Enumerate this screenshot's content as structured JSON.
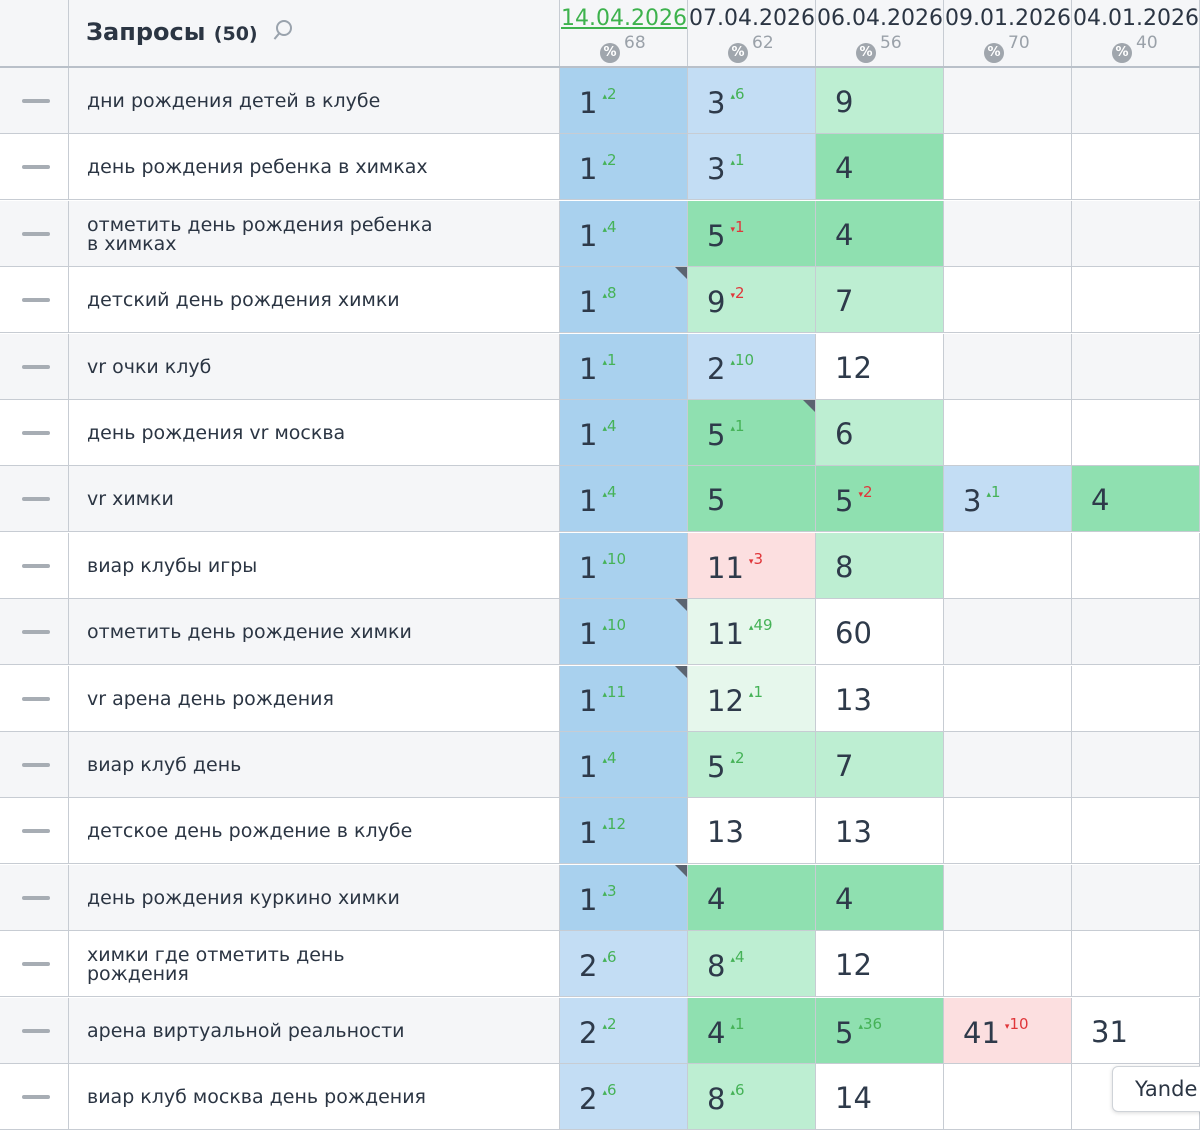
{
  "header": {
    "title": "Запросы",
    "count": "(50)",
    "search_icon": "search-icon",
    "dates": [
      {
        "date": "14.04.2026",
        "pct": "68",
        "active": true
      },
      {
        "date": "07.04.2026",
        "pct": "62",
        "active": false
      },
      {
        "date": "06.04.2026",
        "pct": "56",
        "active": false
      },
      {
        "date": "09.01.2026",
        "pct": "70",
        "active": false
      },
      {
        "date": "04.01.2026",
        "pct": "40",
        "active": false
      }
    ]
  },
  "colors": {
    "blue_dark": "#a9d1ee",
    "blue_light": "#c3ddf4",
    "green_dark": "#8fe0b0",
    "green_light": "#bdeed2",
    "green_pale": "#e6f7ec",
    "pink": "#fcdfe0",
    "white": "#ffffff",
    "grey_row": "#f5f6f8",
    "up": "#45b257",
    "down": "#e0363a"
  },
  "rows": [
    {
      "query": [
        "дни рождения детей в клубе"
      ],
      "cells": [
        {
          "pos": "1",
          "delta": "2",
          "dir": "up",
          "color": "blue_dark"
        },
        {
          "pos": "3",
          "delta": "6",
          "dir": "up",
          "color": "blue_light"
        },
        {
          "pos": "9",
          "color": "green_light"
        },
        {},
        {}
      ]
    },
    {
      "query": [
        "день рождения ребенка в химках"
      ],
      "cells": [
        {
          "pos": "1",
          "delta": "2",
          "dir": "up",
          "color": "blue_dark"
        },
        {
          "pos": "3",
          "delta": "1",
          "dir": "up",
          "color": "blue_light"
        },
        {
          "pos": "4",
          "color": "green_dark"
        },
        {},
        {}
      ]
    },
    {
      "query": [
        "отметить день рождения ребенка",
        "в химках"
      ],
      "cells": [
        {
          "pos": "1",
          "delta": "4",
          "dir": "up",
          "color": "blue_dark"
        },
        {
          "pos": "5",
          "delta": "1",
          "dir": "down",
          "color": "green_dark"
        },
        {
          "pos": "4",
          "color": "green_dark"
        },
        {},
        {}
      ]
    },
    {
      "query": [
        "детский день рождения химки"
      ],
      "cells": [
        {
          "pos": "1",
          "delta": "8",
          "dir": "up",
          "color": "blue_dark",
          "corner": true
        },
        {
          "pos": "9",
          "delta": "2",
          "dir": "down",
          "color": "green_light"
        },
        {
          "pos": "7",
          "color": "green_light"
        },
        {},
        {}
      ]
    },
    {
      "query": [
        "vr очки клуб"
      ],
      "cells": [
        {
          "pos": "1",
          "delta": "1",
          "dir": "up",
          "color": "blue_dark"
        },
        {
          "pos": "2",
          "delta": "10",
          "dir": "up",
          "color": "blue_light"
        },
        {
          "pos": "12",
          "color": "white"
        },
        {},
        {}
      ]
    },
    {
      "query": [
        "день рождения vr москва"
      ],
      "cells": [
        {
          "pos": "1",
          "delta": "4",
          "dir": "up",
          "color": "blue_dark"
        },
        {
          "pos": "5",
          "delta": "1",
          "dir": "up",
          "color": "green_dark",
          "corner": true
        },
        {
          "pos": "6",
          "color": "green_light"
        },
        {},
        {}
      ]
    },
    {
      "query": [
        "vr химки"
      ],
      "cells": [
        {
          "pos": "1",
          "delta": "4",
          "dir": "up",
          "color": "blue_dark"
        },
        {
          "pos": "5",
          "color": "green_dark"
        },
        {
          "pos": "5",
          "delta": "2",
          "dir": "down",
          "color": "green_dark"
        },
        {
          "pos": "3",
          "delta": "1",
          "dir": "up",
          "color": "blue_light"
        },
        {
          "pos": "4",
          "color": "green_dark"
        }
      ]
    },
    {
      "query": [
        "виар клубы игры"
      ],
      "cells": [
        {
          "pos": "1",
          "delta": "10",
          "dir": "up",
          "color": "blue_dark"
        },
        {
          "pos": "11",
          "delta": "3",
          "dir": "down",
          "color": "pink"
        },
        {
          "pos": "8",
          "color": "green_light"
        },
        {},
        {}
      ]
    },
    {
      "query": [
        "отметить день рождение химки"
      ],
      "cells": [
        {
          "pos": "1",
          "delta": "10",
          "dir": "up",
          "color": "blue_dark",
          "corner": true
        },
        {
          "pos": "11",
          "delta": "49",
          "dir": "up",
          "color": "green_pale"
        },
        {
          "pos": "60",
          "color": "white"
        },
        {},
        {}
      ]
    },
    {
      "query": [
        "vr арена день рождения"
      ],
      "cells": [
        {
          "pos": "1",
          "delta": "11",
          "dir": "up",
          "color": "blue_dark",
          "corner": true
        },
        {
          "pos": "12",
          "delta": "1",
          "dir": "up",
          "color": "green_pale"
        },
        {
          "pos": "13",
          "color": "white"
        },
        {},
        {}
      ]
    },
    {
      "query": [
        "виар клуб день"
      ],
      "cells": [
        {
          "pos": "1",
          "delta": "4",
          "dir": "up",
          "color": "blue_dark"
        },
        {
          "pos": "5",
          "delta": "2",
          "dir": "up",
          "color": "green_light"
        },
        {
          "pos": "7",
          "color": "green_light"
        },
        {},
        {}
      ]
    },
    {
      "query": [
        "детское день рождение в клубе"
      ],
      "cells": [
        {
          "pos": "1",
          "delta": "12",
          "dir": "up",
          "color": "blue_dark"
        },
        {
          "pos": "13",
          "color": "white"
        },
        {
          "pos": "13",
          "color": "white"
        },
        {},
        {}
      ]
    },
    {
      "query": [
        "день рождения куркино химки"
      ],
      "cells": [
        {
          "pos": "1",
          "delta": "3",
          "dir": "up",
          "color": "blue_dark",
          "corner": true
        },
        {
          "pos": "4",
          "color": "green_dark"
        },
        {
          "pos": "4",
          "color": "green_dark"
        },
        {},
        {}
      ]
    },
    {
      "query": [
        "химки где отметить день",
        "рождения"
      ],
      "cells": [
        {
          "pos": "2",
          "delta": "6",
          "dir": "up",
          "color": "blue_light"
        },
        {
          "pos": "8",
          "delta": "4",
          "dir": "up",
          "color": "green_light"
        },
        {
          "pos": "12",
          "color": "white"
        },
        {},
        {}
      ]
    },
    {
      "query": [
        "арена виртуальной реальности"
      ],
      "cells": [
        {
          "pos": "2",
          "delta": "2",
          "dir": "up",
          "color": "blue_light"
        },
        {
          "pos": "4",
          "delta": "1",
          "dir": "up",
          "color": "green_dark"
        },
        {
          "pos": "5",
          "delta": "36",
          "dir": "up",
          "color": "green_dark"
        },
        {
          "pos": "41",
          "delta": "10",
          "dir": "down",
          "color": "pink"
        },
        {
          "pos": "31",
          "color": "white"
        }
      ]
    },
    {
      "query": [
        "виар клуб москва день рождения"
      ],
      "cells": [
        {
          "pos": "2",
          "delta": "6",
          "dir": "up",
          "color": "blue_light"
        },
        {
          "pos": "8",
          "delta": "6",
          "dir": "up",
          "color": "green_light"
        },
        {
          "pos": "14",
          "color": "white"
        },
        {},
        {}
      ]
    }
  ],
  "tooltip": "Yande"
}
